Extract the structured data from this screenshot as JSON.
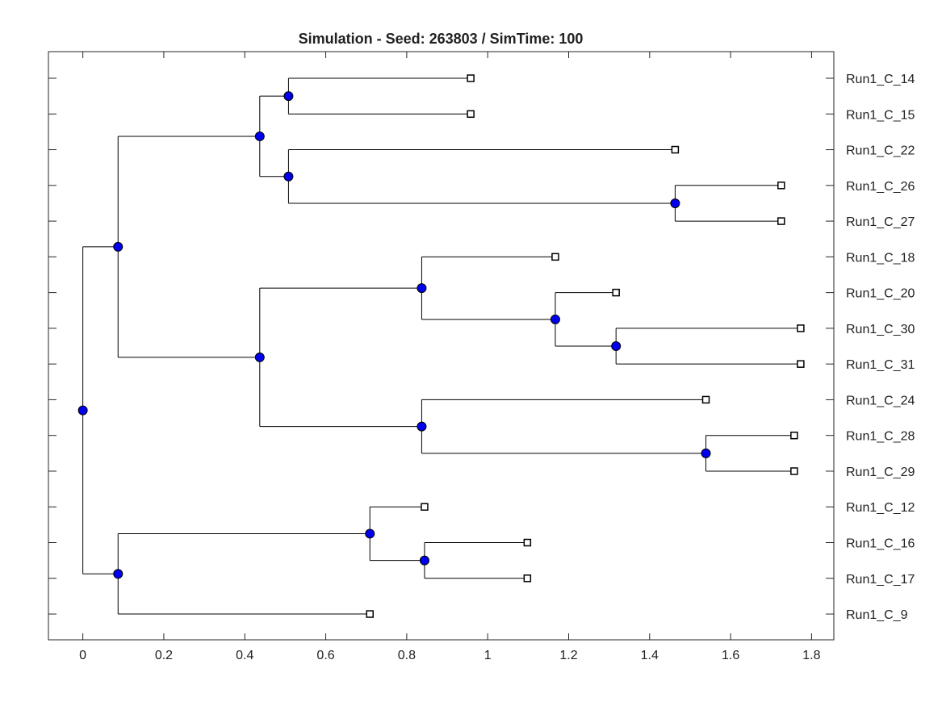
{
  "chart_data": {
    "type": "dendrogram",
    "title": "Simulation - Seed: 263803 / SimTime: 100",
    "xlabel": "",
    "ylabel": "",
    "xlim": [
      -0.085,
      1.855
    ],
    "xticks": [
      0,
      0.2,
      0.4,
      0.6,
      0.8,
      1,
      1.2,
      1.4,
      1.6,
      1.8
    ],
    "xtick_labels": [
      "0",
      "0.2",
      "0.4",
      "0.6",
      "0.8",
      "1",
      "1.2",
      "1.4",
      "1.6",
      "1.8"
    ],
    "grid": false,
    "leaf_order": [
      "Run1_C_14",
      "Run1_C_15",
      "Run1_C_22",
      "Run1_C_26",
      "Run1_C_27",
      "Run1_C_18",
      "Run1_C_20",
      "Run1_C_30",
      "Run1_C_31",
      "Run1_C_24",
      "Run1_C_28",
      "Run1_C_29",
      "Run1_C_12",
      "Run1_C_16",
      "Run1_C_17",
      "Run1_C_9"
    ],
    "node_color": "#0000ee",
    "tree": {
      "x": 0,
      "children": [
        {
          "x": 0.087,
          "children": [
            {
              "x": 0.437,
              "children": [
                {
                  "x": 0.508,
                  "children": [
                    {
                      "x": 0.958,
                      "leaf": "Run1_C_14"
                    },
                    {
                      "x": 0.958,
                      "leaf": "Run1_C_15"
                    }
                  ]
                },
                {
                  "x": 0.508,
                  "children": [
                    {
                      "x": 1.463,
                      "leaf": "Run1_C_22"
                    },
                    {
                      "x": 1.463,
                      "children": [
                        {
                          "x": 1.725,
                          "leaf": "Run1_C_26"
                        },
                        {
                          "x": 1.725,
                          "leaf": "Run1_C_27"
                        }
                      ]
                    }
                  ]
                }
              ]
            },
            {
              "x": 0.437,
              "children": [
                {
                  "x": 0.837,
                  "children": [
                    {
                      "x": 1.167,
                      "leaf": "Run1_C_18"
                    },
                    {
                      "x": 1.167,
                      "children": [
                        {
                          "x": 1.317,
                          "leaf": "Run1_C_20"
                        },
                        {
                          "x": 1.317,
                          "children": [
                            {
                              "x": 1.773,
                              "leaf": "Run1_C_30"
                            },
                            {
                              "x": 1.773,
                              "leaf": "Run1_C_31"
                            }
                          ]
                        }
                      ]
                    }
                  ]
                },
                {
                  "x": 0.837,
                  "children": [
                    {
                      "x": 1.539,
                      "leaf": "Run1_C_24"
                    },
                    {
                      "x": 1.539,
                      "children": [
                        {
                          "x": 1.757,
                          "leaf": "Run1_C_28"
                        },
                        {
                          "x": 1.757,
                          "leaf": "Run1_C_29"
                        }
                      ]
                    }
                  ]
                }
              ]
            }
          ]
        },
        {
          "x": 0.087,
          "children": [
            {
              "x": 0.709,
              "children": [
                {
                  "x": 0.844,
                  "leaf": "Run1_C_12"
                },
                {
                  "x": 0.844,
                  "children": [
                    {
                      "x": 1.098,
                      "leaf": "Run1_C_16"
                    },
                    {
                      "x": 1.098,
                      "leaf": "Run1_C_17"
                    }
                  ]
                }
              ]
            },
            {
              "x": 0.709,
              "leaf": "Run1_C_9"
            }
          ]
        }
      ]
    }
  }
}
